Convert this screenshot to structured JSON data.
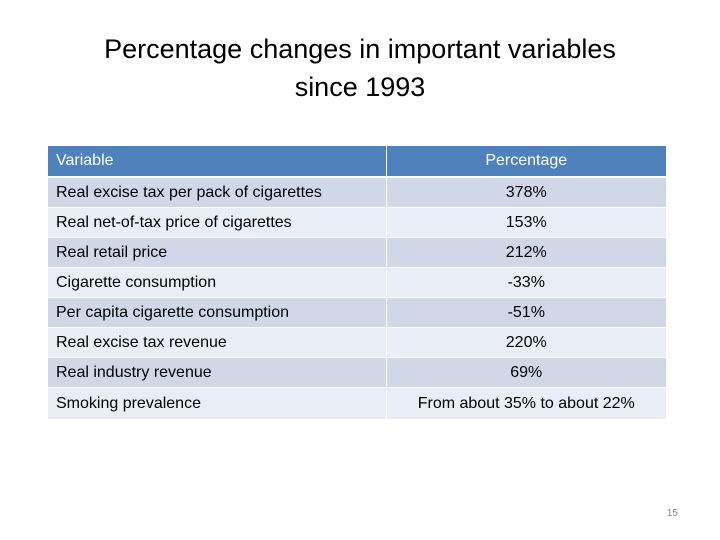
{
  "slide": {
    "title_line1": "Percentage changes in important variables",
    "title_line2": "since 1993",
    "page_number": "15"
  },
  "table": {
    "headers": {
      "variable": "Variable",
      "percentage": "Percentage"
    },
    "rows": [
      {
        "variable": "Real excise tax per pack of cigarettes",
        "percentage": "378%"
      },
      {
        "variable": "Real net-of-tax price of cigarettes",
        "percentage": "153%"
      },
      {
        "variable": "Real retail price",
        "percentage": "212%"
      },
      {
        "variable": "Cigarette consumption",
        "percentage": "-33%"
      },
      {
        "variable": "Per capita cigarette consumption",
        "percentage": "-51%"
      },
      {
        "variable": "Real excise tax revenue",
        "percentage": "220%"
      },
      {
        "variable": "Real industry revenue",
        "percentage": "69%"
      },
      {
        "variable": "Smoking prevalence",
        "percentage": "From about 35% to about 22%"
      }
    ],
    "colors": {
      "header_bg": "#4f81bd",
      "row_odd_bg": "#d0d8e8",
      "row_even_bg": "#e9edf4"
    }
  }
}
